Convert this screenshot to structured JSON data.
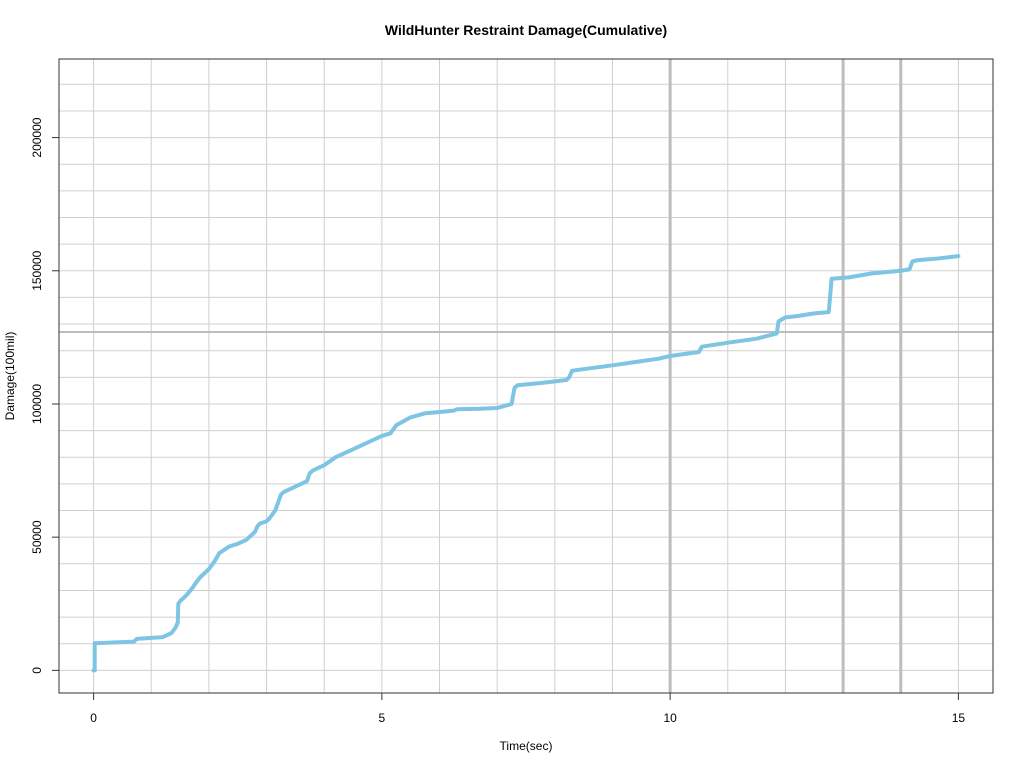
{
  "chart_data": {
    "type": "line",
    "title": "WildHunter Restraint Damage(Cumulative)",
    "xlabel": "Time(sec)",
    "ylabel": "Damage(100mil)",
    "xlim": [
      -0.6,
      15.6
    ],
    "ylim": [
      -8500,
      229500
    ],
    "x_ticks": [
      0,
      5,
      10,
      15
    ],
    "x_tick_labels": [
      "0",
      "5",
      "10",
      "15"
    ],
    "y_ticks": [
      0,
      50000,
      100000,
      150000,
      200000
    ],
    "y_tick_labels": [
      "0",
      "50000",
      "100000",
      "150000",
      "200000"
    ],
    "grid": true,
    "minor_grid_x_step": 1,
    "minor_grid_y_step": 10000,
    "reference_lines": {
      "vertical": [
        10,
        13,
        14
      ],
      "horizontal": [
        127000
      ]
    },
    "line_color": "#7ec4e3",
    "grid_color": "#d0d0d0",
    "reference_color": "#bdbdbd",
    "series": [
      {
        "x": [
          0,
          0.02,
          0.02,
          0.7,
          0.75,
          1.2,
          1.35,
          1.42,
          1.46,
          1.47,
          1.5,
          1.6,
          1.7,
          1.78,
          1.85,
          2.0,
          2.1,
          2.18,
          2.25,
          2.35,
          2.5,
          2.65,
          2.8,
          2.84,
          2.88,
          3.0,
          3.05,
          3.15,
          3.2,
          3.25,
          3.3,
          3.5,
          3.7,
          3.75,
          3.8,
          4.0,
          4.2,
          4.5,
          4.8,
          5.0,
          5.15,
          5.25,
          5.5,
          5.75,
          6.0,
          6.25,
          6.3,
          6.7,
          7.0,
          7.25,
          7.3,
          7.35,
          7.8,
          8.2,
          8.25,
          8.3,
          9.0,
          9.8,
          10.0,
          10.5,
          10.55,
          11.0,
          11.5,
          11.85,
          11.88,
          12.0,
          12.2,
          12.5,
          12.75,
          12.77,
          12.8,
          13.1,
          13.5,
          14.0,
          14.15,
          14.2,
          14.3,
          14.6,
          15.0
        ],
        "y": [
          0,
          0,
          10200,
          10800,
          11800,
          12500,
          14000,
          16000,
          18000,
          25000,
          26000,
          28000,
          30500,
          33000,
          35000,
          38000,
          41000,
          44000,
          45000,
          46500,
          47500,
          49000,
          52000,
          54000,
          55000,
          56000,
          57000,
          60000,
          63000,
          66000,
          67000,
          69000,
          71000,
          74000,
          75000,
          77000,
          80000,
          83000,
          86000,
          88000,
          89000,
          92000,
          95000,
          96500,
          97000,
          97500,
          98000,
          98200,
          98500,
          100000,
          106000,
          107000,
          108000,
          109000,
          110000,
          112500,
          114500,
          117000,
          118000,
          119500,
          121500,
          123000,
          124500,
          126500,
          131000,
          132500,
          133000,
          134000,
          134500,
          139000,
          147000,
          147500,
          149000,
          150000,
          150500,
          153500,
          154000,
          154500,
          155500
        ]
      }
    ]
  }
}
